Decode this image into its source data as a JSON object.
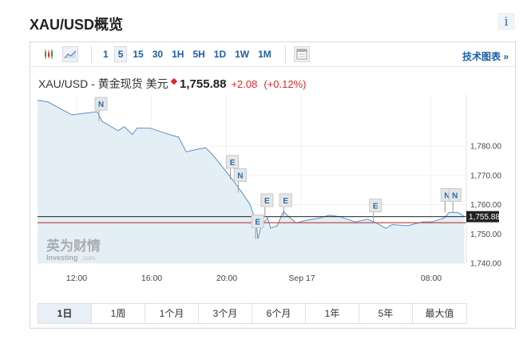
{
  "header": {
    "title": "XAU/USD概览",
    "info_label": "i"
  },
  "toolbar": {
    "chart_types": [
      {
        "icon": "candlestick-icon"
      },
      {
        "icon": "area-chart-icon",
        "selected": true
      }
    ],
    "intervals": [
      {
        "label": "1"
      },
      {
        "label": "5",
        "selected": true
      },
      {
        "label": "15"
      },
      {
        "label": "30"
      },
      {
        "label": "1H"
      },
      {
        "label": "5H"
      },
      {
        "label": "1D"
      },
      {
        "label": "1W"
      },
      {
        "label": "1M"
      }
    ],
    "table_icon": "table-icon",
    "tech_chart_label": "技术图表 »"
  },
  "quote": {
    "name": "XAU/USD - 黄金现货 美元",
    "star": "◆",
    "price": "1,755.88",
    "change": "+2.08",
    "change_pct": "(+0.12%)"
  },
  "chart_data": {
    "type": "area",
    "colors": {
      "line": "#5b8fc7",
      "fill": "#e4eef5",
      "current_line": "#222222",
      "prev_close_line": "#c0504d",
      "price_tag_bg": "#222222"
    },
    "ylim": [
      1740,
      1798
    ],
    "y_ticks": [
      "1,780.00",
      "1,770.00",
      "1,760.00",
      "1,750.00",
      "1,740.00"
    ],
    "x_ticks": [
      "12:00",
      "16:00",
      "20:00",
      "Sep 17",
      "08:00"
    ],
    "current_price": 1755.88,
    "current_price_label": "1,755.88",
    "previous_close": 1753.8,
    "points": [
      [
        "09:37",
        1795.6
      ],
      [
        "10:28",
        1795.0
      ],
      [
        "10:59",
        1793.2
      ],
      [
        "11:45",
        1790.6
      ],
      [
        "12:20",
        1791.1
      ],
      [
        "13:06",
        1791.7
      ],
      [
        "13:22",
        1788.4
      ],
      [
        "14:13",
        1785.2
      ],
      [
        "14:33",
        1786.6
      ],
      [
        "14:59",
        1783.9
      ],
      [
        "15:14",
        1786.1
      ],
      [
        "15:55",
        1786.1
      ],
      [
        "16:46",
        1784.3
      ],
      [
        "17:27",
        1783.0
      ],
      [
        "17:52",
        1778.0
      ],
      [
        "18:28",
        1778.9
      ],
      [
        "18:54",
        1779.4
      ],
      [
        "19:19",
        1776.7
      ],
      [
        "19:50",
        1772.6
      ],
      [
        "20:20",
        1768.6
      ],
      [
        "20:51",
        1764.1
      ],
      [
        "21:17",
        1760.0
      ],
      [
        "21:37",
        1753.7
      ],
      [
        "21:42",
        1748.3
      ],
      [
        "21:53",
        1752.8
      ],
      [
        "22:13",
        1755.5
      ],
      [
        "22:23",
        1751.9
      ],
      [
        "22:44",
        1752.8
      ],
      [
        "23:04",
        1757.7
      ],
      [
        "23:25",
        1755.5
      ],
      [
        "23:45",
        1753.7
      ],
      [
        "Sep 17 00:17",
        1754.6
      ],
      [
        "Sep 17 01:14",
        1755.5
      ],
      [
        "Sep 17 01:43",
        1756.4
      ],
      [
        "Sep 17 02:23",
        1755.9
      ],
      [
        "Sep 17 03:20",
        1754.1
      ],
      [
        "Sep 17 04:06",
        1755.0
      ],
      [
        "Sep 17 04:40",
        1753.7
      ],
      [
        "Sep 17 05:14",
        1751.9
      ],
      [
        "Sep 17 05:37",
        1753.2
      ],
      [
        "Sep 17 06:34",
        1752.8
      ],
      [
        "Sep 17 07:31",
        1754.1
      ],
      [
        "Sep 17 08:06",
        1754.1
      ],
      [
        "Sep 17 08:51",
        1755.5
      ],
      [
        "Sep 17 09:08",
        1757.3
      ],
      [
        "Sep 17 09:42",
        1757.3
      ],
      [
        "Sep 17 10:05",
        1755.88
      ]
    ],
    "events": [
      {
        "time": "13:22",
        "label": "N"
      },
      {
        "time": "20:24",
        "label": "E"
      },
      {
        "time": "20:49",
        "label": "N"
      },
      {
        "time": "21:45",
        "label": "E"
      },
      {
        "time": "22:15",
        "label": "E"
      },
      {
        "time": "23:15",
        "label": "E"
      },
      {
        "time": "Sep 17 04:40",
        "label": "E"
      },
      {
        "time": "Sep 17 09:05",
        "label": "N"
      },
      {
        "time": "Sep 17 09:34",
        "label": "N"
      }
    ],
    "watermark": {
      "cn": "英为财情",
      "en": "Investing",
      "suffix": ".com"
    }
  },
  "ranges": [
    {
      "label": "1日",
      "selected": true
    },
    {
      "label": "1周"
    },
    {
      "label": "1个月"
    },
    {
      "label": "3个月"
    },
    {
      "label": "6个月"
    },
    {
      "label": "1年"
    },
    {
      "label": "5年"
    },
    {
      "label": "最大值"
    }
  ]
}
